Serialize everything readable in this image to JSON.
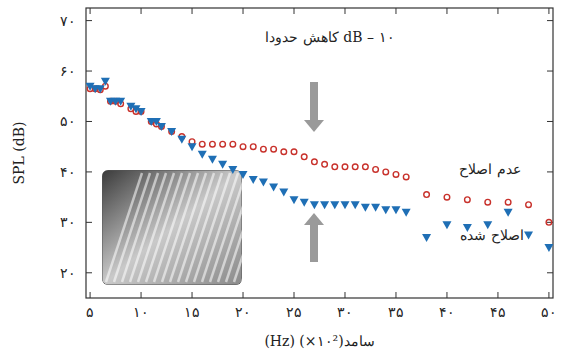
{
  "chart_data": {
    "type": "scatter",
    "x_label": "(Hz) (×۱۰²)سامد",
    "y_label": "SPL (dB)",
    "annotation": "کاهش حدودا dB – ۱۰",
    "xlim": [
      4.6,
      50.4
    ],
    "ylim": [
      15,
      72.5
    ],
    "xticks": [
      {
        "value": 5,
        "label": "۵"
      },
      {
        "value": 10,
        "label": "۱۰"
      },
      {
        "value": 15,
        "label": "۱۵"
      },
      {
        "value": 20,
        "label": "۲۰"
      },
      {
        "value": 25,
        "label": "۲۵"
      },
      {
        "value": 30,
        "label": "۳۰"
      },
      {
        "value": 35,
        "label": "۳۵"
      },
      {
        "value": 40,
        "label": "۴۰"
      },
      {
        "value": 45,
        "label": "۴۵"
      },
      {
        "value": 50,
        "label": "۵۰"
      }
    ],
    "yticks": [
      {
        "value": 20,
        "label": "۲۰"
      },
      {
        "value": 30,
        "label": "۳۰"
      },
      {
        "value": 40,
        "label": "۴۰"
      },
      {
        "value": 50,
        "label": "۵۰"
      },
      {
        "value": 60,
        "label": "۶۰"
      },
      {
        "value": 70,
        "label": "۷۰"
      }
    ],
    "grid": false,
    "x": [
      5,
      5.5,
      6,
      6.5,
      7,
      7.5,
      8,
      9,
      9.5,
      10,
      11,
      11.5,
      12,
      13,
      14,
      15,
      16,
      17,
      18,
      19,
      20,
      21,
      22,
      23,
      24,
      25,
      26,
      27,
      28,
      29,
      30,
      31,
      32,
      33,
      34,
      35,
      36,
      38,
      40,
      42,
      44,
      46,
      48,
      50
    ],
    "series": [
      {
        "name": "عدم اصلاح",
        "color": "#c8312b",
        "marker": "circle_open",
        "values": [
          56.5,
          56.5,
          56.3,
          57,
          54,
          54,
          53.5,
          52.5,
          52,
          52,
          50,
          49.5,
          49,
          48,
          47,
          46,
          45.5,
          45.5,
          45.5,
          45.5,
          45,
          45,
          44.5,
          44.5,
          44,
          44,
          43,
          42,
          41.5,
          41,
          41,
          41,
          41,
          40.5,
          40,
          39.5,
          39,
          35.5,
          35,
          34.5,
          34,
          34,
          33.5,
          30
        ]
      },
      {
        "name": "اصلاح شده",
        "color": "#1f6fb5",
        "marker": "triangle_down",
        "values": [
          57,
          56.5,
          56.5,
          58,
          54,
          54,
          54,
          53,
          52.5,
          52,
          50,
          50,
          49,
          48,
          46.5,
          45,
          43.5,
          42.5,
          41.5,
          40.5,
          39.5,
          38.5,
          38,
          37,
          36,
          34.5,
          34,
          33.5,
          33.5,
          33.5,
          33.5,
          33.5,
          33,
          33,
          32.5,
          32.5,
          32,
          27,
          29.5,
          29,
          29.5,
          32,
          27.5,
          25
        ]
      }
    ]
  }
}
